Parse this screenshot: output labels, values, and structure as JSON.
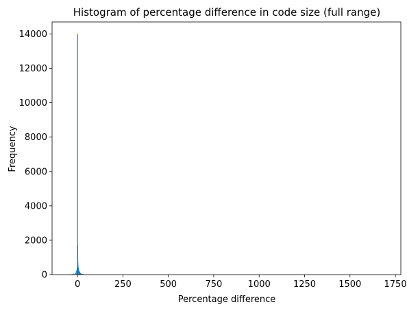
{
  "chart_data": {
    "type": "bar",
    "title": "Histogram of percentage difference in code size (full range)",
    "xlabel": "Percentage difference",
    "ylabel": "Frequency",
    "xlim": [
      -140,
      1780
    ],
    "ylim": [
      0,
      14700
    ],
    "xticks": [
      0,
      250,
      500,
      750,
      1000,
      1250,
      1500,
      1750
    ],
    "yticks": [
      0,
      2000,
      4000,
      6000,
      8000,
      10000,
      12000,
      14000
    ],
    "bar_color": "#1f77b4",
    "grid": false,
    "bins": [
      {
        "x": -100,
        "value": 5
      },
      {
        "x": -75,
        "value": 10
      },
      {
        "x": -50,
        "value": 20
      },
      {
        "x": -30,
        "value": 35
      },
      {
        "x": -20,
        "value": 60
      },
      {
        "x": -10,
        "value": 120
      },
      {
        "x": -5,
        "value": 250
      },
      {
        "x": -2,
        "value": 400
      },
      {
        "x": 0,
        "value": 14000
      },
      {
        "x": 1,
        "value": 1700
      },
      {
        "x": 2,
        "value": 750
      },
      {
        "x": 3,
        "value": 550
      },
      {
        "x": 4,
        "value": 450
      },
      {
        "x": 5,
        "value": 380
      },
      {
        "x": 6,
        "value": 300
      },
      {
        "x": 7,
        "value": 260
      },
      {
        "x": 8,
        "value": 220
      },
      {
        "x": 9,
        "value": 200
      },
      {
        "x": 10,
        "value": 170
      },
      {
        "x": 12,
        "value": 140
      },
      {
        "x": 14,
        "value": 110
      },
      {
        "x": 16,
        "value": 90
      },
      {
        "x": 18,
        "value": 70
      },
      {
        "x": 20,
        "value": 55
      },
      {
        "x": 25,
        "value": 40
      },
      {
        "x": 30,
        "value": 30
      },
      {
        "x": 35,
        "value": 20
      },
      {
        "x": 40,
        "value": 15
      },
      {
        "x": 50,
        "value": 10
      },
      {
        "x": 60,
        "value": 6
      },
      {
        "x": 75,
        "value": 4
      },
      {
        "x": 100,
        "value": 3
      },
      {
        "x": 150,
        "value": 2
      },
      {
        "x": 250,
        "value": 1
      },
      {
        "x": 1700,
        "value": 1
      }
    ]
  }
}
